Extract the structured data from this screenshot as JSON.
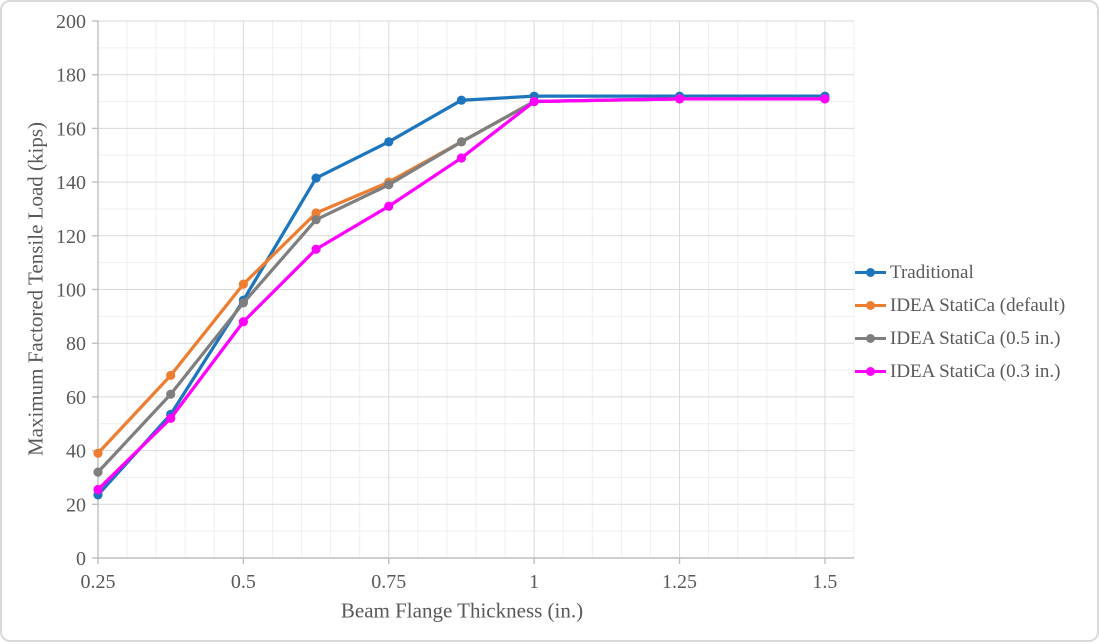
{
  "chart_data": {
    "type": "line",
    "xlabel": "Beam Flange Thickness (in.)",
    "ylabel": "Maximum Factored Tensile Load (kips)",
    "x": [
      0.25,
      0.375,
      0.5,
      0.625,
      0.75,
      0.875,
      1,
      1.25,
      1.5
    ],
    "series": [
      {
        "name": "Traditional",
        "color": "#1C75BD",
        "values": [
          23.5,
          53.5,
          96,
          141.5,
          155,
          170.5,
          172,
          172,
          172
        ]
      },
      {
        "name": "IDEA StatiCa (default)",
        "color": "#ED7D31",
        "values": [
          39,
          68,
          102,
          128.5,
          140,
          155,
          170,
          171,
          171
        ]
      },
      {
        "name": "IDEA StatiCa (0.5 in.)",
        "color": "#7F7F7F",
        "values": [
          32,
          61,
          95,
          126,
          139,
          155,
          170,
          171,
          171
        ]
      },
      {
        "name": "IDEA StatiCa (0.3 in.)",
        "color": "#FF00FF",
        "values": [
          25.5,
          52,
          88,
          115,
          131,
          149,
          170,
          171,
          171
        ]
      }
    ],
    "x_ticks": [
      "0.25",
      "0.5",
      "0.75",
      "1",
      "1.25",
      "1.5"
    ],
    "y_ticks": [
      "0",
      "20",
      "40",
      "60",
      "80",
      "100",
      "120",
      "140",
      "160",
      "180",
      "200"
    ],
    "xlim": [
      0.25,
      1.55
    ],
    "ylim": [
      0,
      200
    ],
    "grid": {
      "major": true,
      "minor": true,
      "x_minor_step": 0.05,
      "y_minor_step": 10
    },
    "legend_position": "right",
    "marker": "circle"
  },
  "colors": {
    "text": "#595959",
    "major_grid": "#d9d9d9",
    "minor_grid": "#efefef",
    "axis_line": "#bfbfbf",
    "frame_border": "#d9d9d9",
    "background": "#ffffff"
  }
}
